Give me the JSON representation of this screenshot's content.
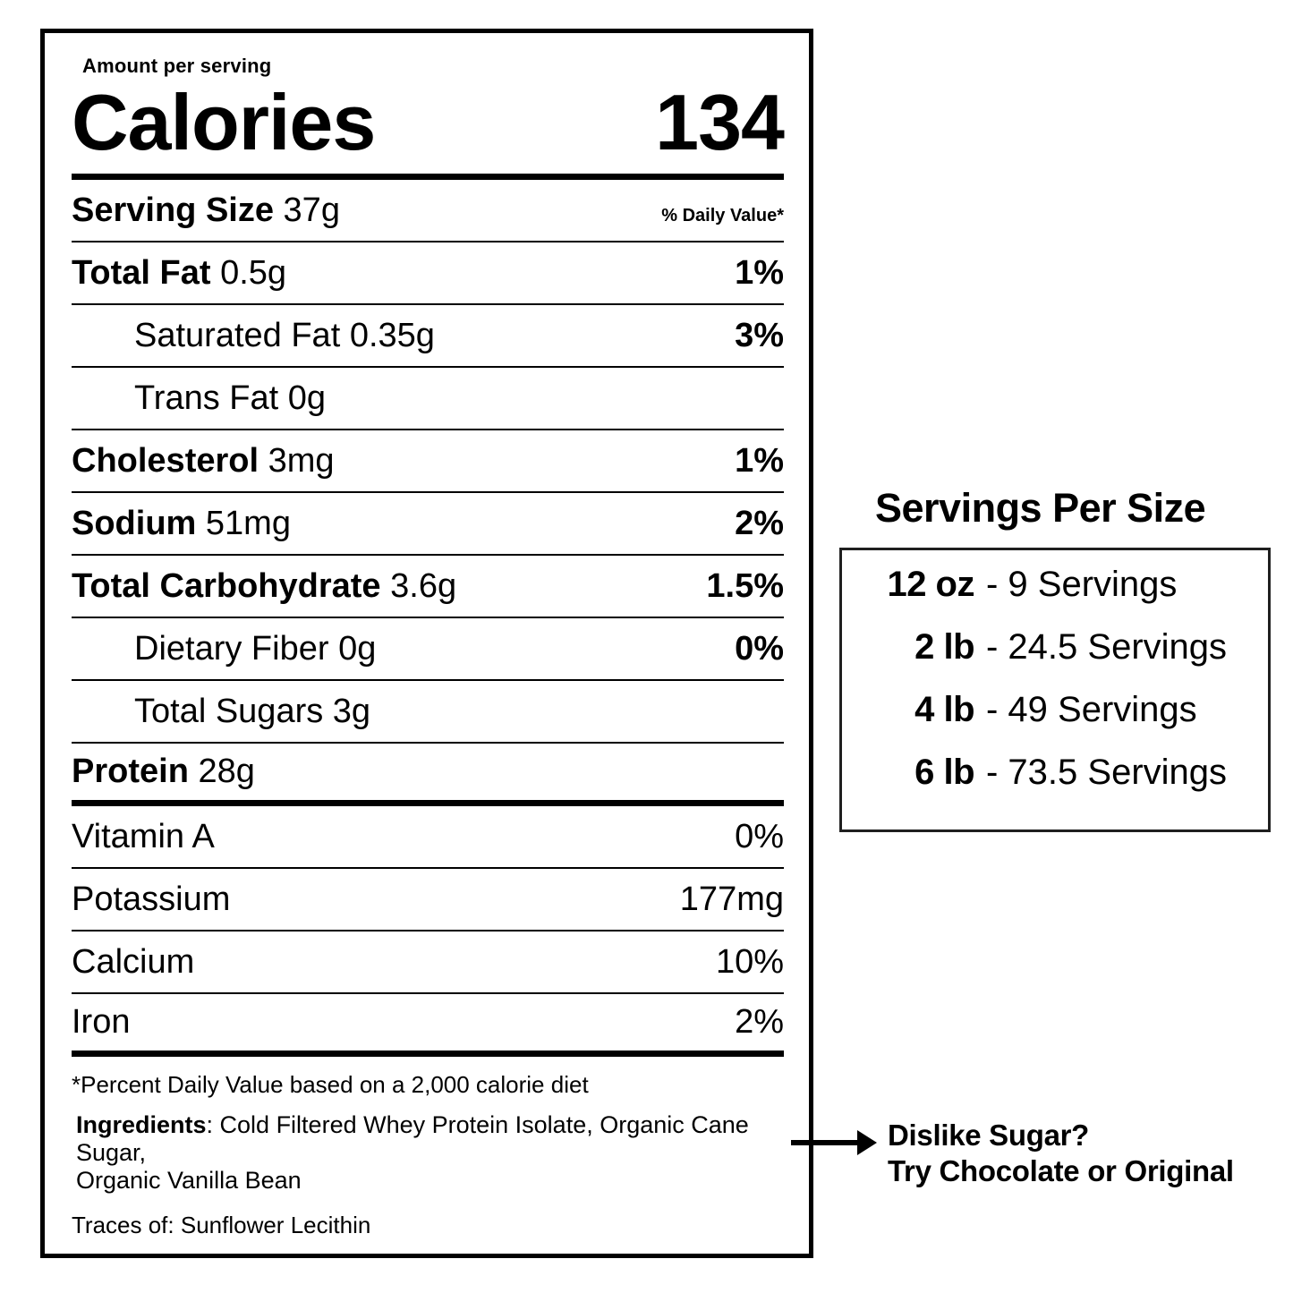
{
  "label": {
    "amount_per_serving": "Amount per serving",
    "calories_label": "Calories",
    "calories_value": "134",
    "rows": [
      {
        "name": "Serving Size",
        "value": "37g",
        "right": "% Daily Value*",
        "style": "main",
        "right_style": "dv-note"
      },
      {
        "name": "Total Fat",
        "value": "0.5g",
        "right": "1%",
        "style": "main",
        "right_style": "bold"
      },
      {
        "name": "Saturated Fat",
        "value": "0.35g",
        "right": "3%",
        "style": "indent",
        "right_style": "bold"
      },
      {
        "name": "Trans Fat",
        "value": "0g",
        "right": "",
        "style": "indent",
        "right_style": "bold"
      },
      {
        "name": "Cholesterol",
        "value": "3mg",
        "right": "1%",
        "style": "main",
        "right_style": "bold"
      },
      {
        "name": "Sodium",
        "value": "51mg",
        "right": "2%",
        "style": "main",
        "right_style": "bold"
      },
      {
        "name": "Total Carbohydrate",
        "value": "3.6g",
        "right": "1.5%",
        "style": "main",
        "right_style": "bold"
      },
      {
        "name": "Dietary Fiber",
        "value": "0g",
        "right": "0%",
        "style": "indent",
        "right_style": "bold"
      },
      {
        "name": "Total Sugars",
        "value": "3g",
        "right": "",
        "style": "indent",
        "right_style": "bold"
      },
      {
        "name": "Protein",
        "value": "28g",
        "right": "",
        "style": "main",
        "right_style": "bold",
        "sep_after": "thick"
      },
      {
        "name": "Vitamin A",
        "value": "",
        "right": "0%",
        "style": "plain",
        "right_style": "regular"
      },
      {
        "name": "Potassium",
        "value": "",
        "right": "177mg",
        "style": "plain",
        "right_style": "regular"
      },
      {
        "name": "Calcium",
        "value": "",
        "right": "10%",
        "style": "plain",
        "right_style": "regular"
      },
      {
        "name": "Iron",
        "value": "",
        "right": "2%",
        "style": "plain",
        "right_style": "regular",
        "sep_after": "thick"
      }
    ],
    "footnote": "*Percent Daily Value based on a 2,000 calorie diet",
    "ingredients": {
      "bold": "Ingredients",
      "line1_rest": ": Cold Filtered Whey Protein Isolate, Organic Cane Sugar,",
      "line2": "Organic Vanilla Bean"
    },
    "traces": "Traces of: Sunflower Lecithin"
  },
  "servings_panel": {
    "title": "Servings Per Size",
    "rows": [
      {
        "size": "12 oz",
        "detail": "- 9 Servings"
      },
      {
        "size": "2 lb",
        "detail": "- 24.5 Servings"
      },
      {
        "size": "4 lb",
        "detail": "- 49 Servings"
      },
      {
        "size": "6 lb",
        "detail": "- 73.5 Servings"
      }
    ]
  },
  "annotation": {
    "line1": "Dislike Sugar?",
    "line2": "Try Chocolate or Original"
  },
  "colors": {
    "ink": "#000000",
    "background": "#ffffff"
  }
}
